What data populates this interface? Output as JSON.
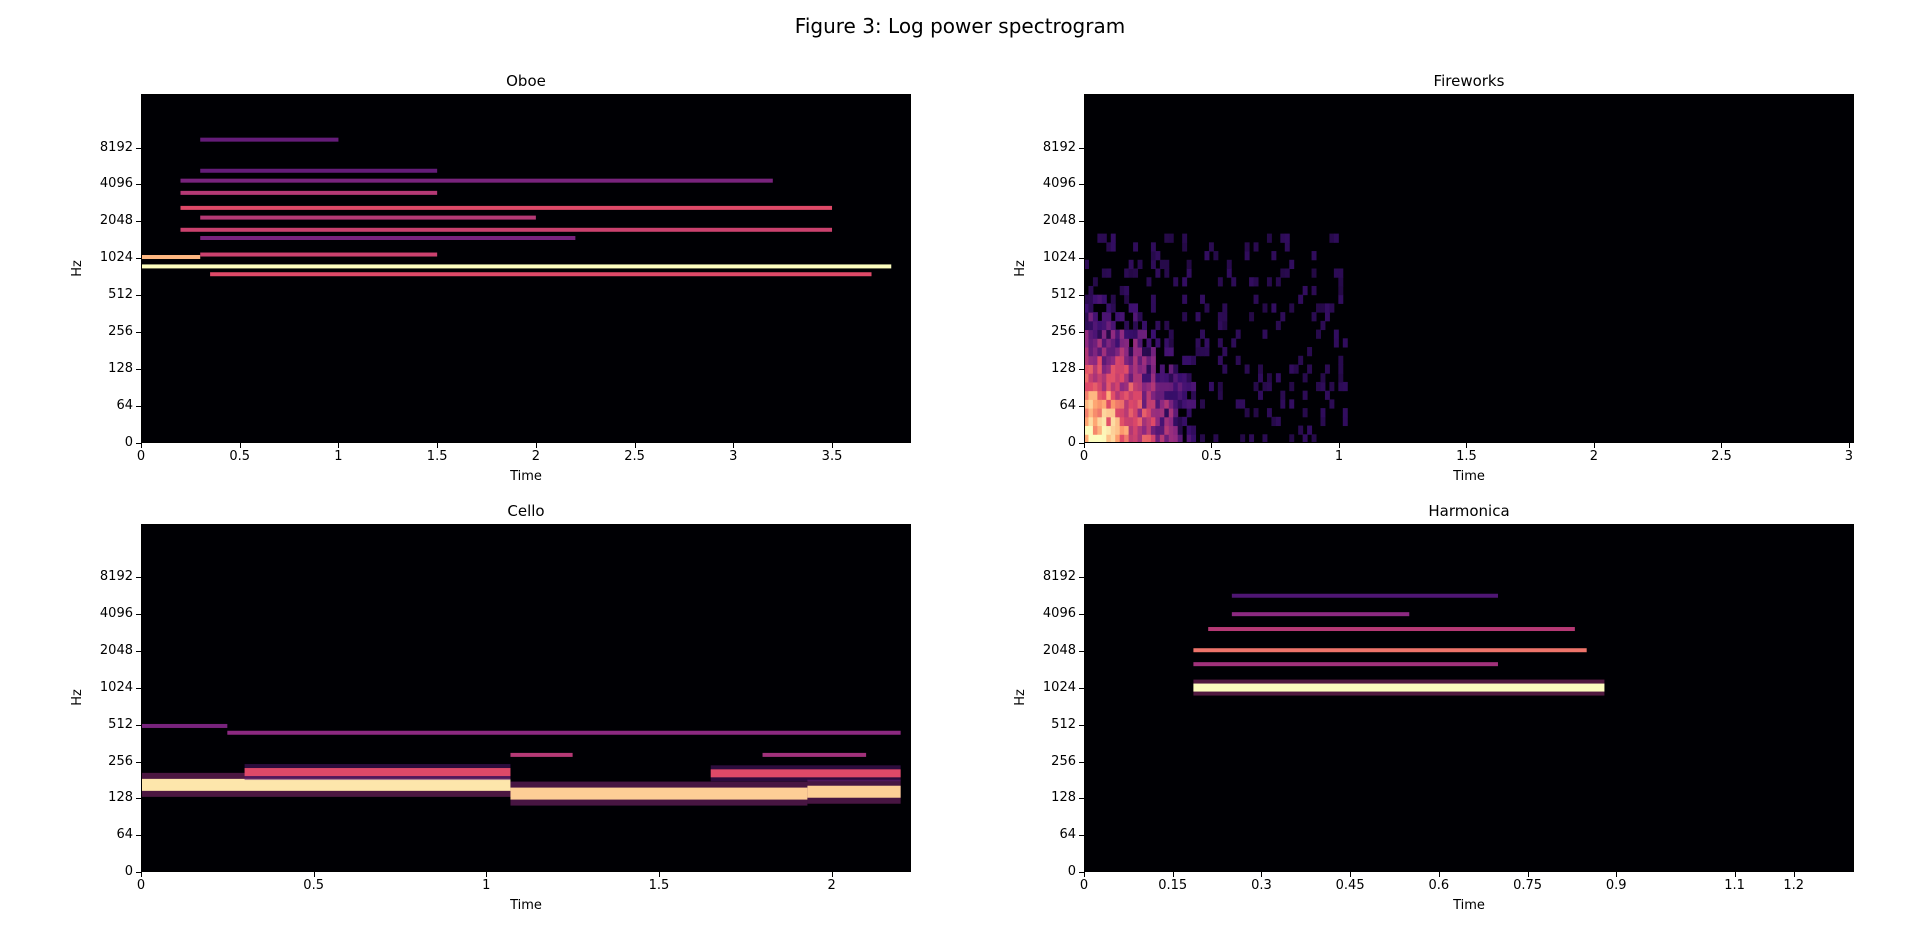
{
  "figure_title": "Figure 3: Log power spectrogram",
  "colors": {
    "background": "#000004",
    "colormap": [
      "#000004",
      "#3b0f70",
      "#8c2981",
      "#de4968",
      "#fe9f6d",
      "#fcfdbf"
    ]
  },
  "chart_data": [
    {
      "type": "heatmap",
      "title": "Oboe",
      "xlabel": "Time",
      "ylabel": "Hz",
      "xlim": [
        0,
        3.9
      ],
      "y_scale": "log2",
      "xticks": [
        0,
        0.5,
        1,
        1.5,
        2,
        2.5,
        3,
        3.5
      ],
      "xtick_labels": [
        "0",
        "0.5",
        "1",
        "1.5",
        "2",
        "2.5",
        "3",
        "3.5"
      ],
      "yticks": [
        0,
        64,
        128,
        256,
        512,
        1024,
        2048,
        4096,
        8192
      ],
      "yticks_labels": [
        "0",
        "64",
        "128",
        "256",
        "512",
        "1024",
        "2048",
        "4096",
        "8192"
      ],
      "bands": [
        {
          "t0": 0.0,
          "t1": 3.8,
          "f": 880,
          "level": 1.0
        },
        {
          "t0": 0.0,
          "t1": 0.3,
          "f": 1050,
          "level": 0.85
        },
        {
          "t0": 0.35,
          "t1": 3.7,
          "f": 760,
          "level": 0.6
        },
        {
          "t0": 0.3,
          "t1": 1.5,
          "f": 1100,
          "level": 0.55
        },
        {
          "t0": 0.2,
          "t1": 3.5,
          "f": 1750,
          "level": 0.55
        },
        {
          "t0": 0.2,
          "t1": 3.5,
          "f": 2640,
          "level": 0.6
        },
        {
          "t0": 0.3,
          "t1": 2.0,
          "f": 2200,
          "level": 0.5
        },
        {
          "t0": 0.2,
          "t1": 1.5,
          "f": 3500,
          "level": 0.5
        },
        {
          "t0": 0.2,
          "t1": 3.2,
          "f": 4400,
          "level": 0.35
        },
        {
          "t0": 0.3,
          "t1": 1.5,
          "f": 5300,
          "level": 0.3
        },
        {
          "t0": 0.3,
          "t1": 1.0,
          "f": 9500,
          "level": 0.3
        },
        {
          "t0": 0.3,
          "t1": 2.2,
          "f": 1500,
          "level": 0.35
        }
      ]
    },
    {
      "type": "heatmap",
      "title": "Fireworks",
      "xlabel": "Time",
      "ylabel": "Hz",
      "xlim": [
        0,
        3.02
      ],
      "y_scale": "log2",
      "xticks": [
        0,
        0.5,
        1,
        1.5,
        2,
        2.5,
        3
      ],
      "xtick_labels": [
        "0",
        "0.5",
        "1",
        "1.5",
        "2",
        "2.5",
        "3"
      ],
      "yticks": [
        0,
        64,
        128,
        256,
        512,
        1024,
        2048,
        4096,
        8192
      ],
      "yticks_labels": [
        "0",
        "64",
        "128",
        "256",
        "512",
        "1024",
        "2048",
        "4096",
        "8192"
      ],
      "blob": {
        "t_max": 1.0,
        "f_max": 1500,
        "peak_t": 0.15,
        "peak_f": 60
      }
    },
    {
      "type": "heatmap",
      "title": "Cello",
      "xlabel": "Time",
      "ylabel": "Hz",
      "xlim": [
        0,
        2.23
      ],
      "y_scale": "log2",
      "xticks": [
        0,
        0.5,
        1,
        1.5,
        2
      ],
      "xtick_labels": [
        "0",
        "0.5",
        "1",
        "1.5",
        "2"
      ],
      "yticks": [
        0,
        64,
        128,
        256,
        512,
        1024,
        2048,
        4096,
        8192
      ],
      "yticks_labels": [
        "0",
        "64",
        "128",
        "256",
        "512",
        "1024",
        "2048",
        "4096",
        "8192"
      ],
      "bands": [
        {
          "t0": 0.0,
          "t1": 1.07,
          "f": 165,
          "level": 0.95,
          "thick": 3
        },
        {
          "t0": 0.3,
          "t1": 1.07,
          "f": 210,
          "level": 0.6,
          "thick": 2
        },
        {
          "t0": 1.07,
          "t1": 1.93,
          "f": 140,
          "level": 0.9,
          "thick": 3
        },
        {
          "t0": 1.93,
          "t1": 2.2,
          "f": 145,
          "level": 0.9,
          "thick": 3
        },
        {
          "t0": 1.65,
          "t1": 2.2,
          "f": 205,
          "level": 0.6,
          "thick": 2
        },
        {
          "t0": 0.25,
          "t1": 2.2,
          "f": 440,
          "level": 0.4,
          "thick": 1
        },
        {
          "t0": 1.07,
          "t1": 1.25,
          "f": 290,
          "level": 0.5,
          "thick": 1
        },
        {
          "t0": 1.8,
          "t1": 2.1,
          "f": 290,
          "level": 0.45,
          "thick": 1
        },
        {
          "t0": 0.0,
          "t1": 0.25,
          "f": 500,
          "level": 0.35,
          "thick": 1
        }
      ]
    },
    {
      "type": "heatmap",
      "title": "Harmonica",
      "xlabel": "Time",
      "ylabel": "Hz",
      "xlim": [
        0,
        1.302
      ],
      "y_scale": "log2",
      "xticks": [
        0,
        0.15,
        0.3,
        0.45,
        0.6,
        0.75,
        0.9,
        1.1,
        1.2
      ],
      "xtick_labels": [
        "0",
        "0.15",
        "0.3",
        "0.45",
        "0.6",
        "0.75",
        "0.9",
        "1.1",
        "1.2"
      ],
      "yticks": [
        0,
        64,
        128,
        256,
        512,
        1024,
        2048,
        4096,
        8192
      ],
      "yticks_labels": [
        "0",
        "64",
        "128",
        "256",
        "512",
        "1024",
        "2048",
        "4096",
        "8192"
      ],
      "bands": [
        {
          "t0": 0.185,
          "t1": 0.88,
          "f": 1030,
          "level": 1.0,
          "thick": 2
        },
        {
          "t0": 0.185,
          "t1": 0.85,
          "f": 2080,
          "level": 0.7,
          "thick": 1
        },
        {
          "t0": 0.185,
          "t1": 0.7,
          "f": 1600,
          "level": 0.45,
          "thick": 1
        },
        {
          "t0": 0.21,
          "t1": 0.83,
          "f": 3100,
          "level": 0.5,
          "thick": 1
        },
        {
          "t0": 0.25,
          "t1": 0.55,
          "f": 4100,
          "level": 0.4,
          "thick": 1
        },
        {
          "t0": 0.25,
          "t1": 0.7,
          "f": 5800,
          "level": 0.25,
          "thick": 1
        }
      ]
    }
  ]
}
